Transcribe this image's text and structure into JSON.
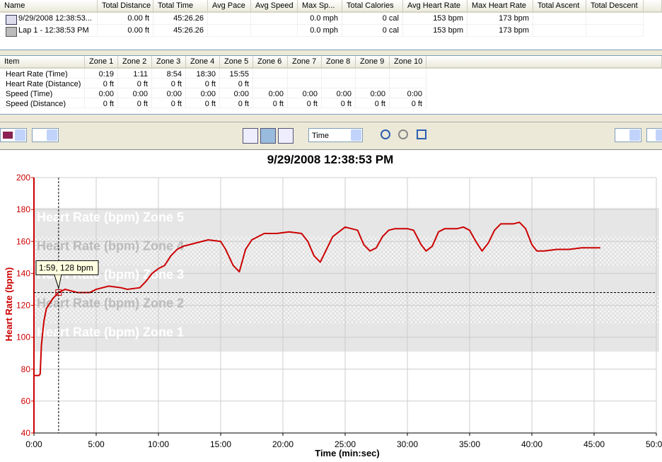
{
  "summary_table": {
    "headers": [
      "Name",
      "Total Distance",
      "Total Time",
      "Avg Pace",
      "Avg Speed",
      "Max Sp...",
      "Total Calories",
      "Avg Heart Rate",
      "Max Heart Rate",
      "Total Ascent",
      "Total Descent"
    ],
    "rows": [
      [
        "9/29/2008 12:38:53...",
        "0.00 ft",
        "45:26.26",
        null,
        null,
        "0.0 mph",
        "0 cal",
        "153 bpm",
        "173 bpm",
        null,
        null
      ],
      [
        "Lap 1 - 12:38:53 PM",
        "0.00 ft",
        "45:26.26",
        null,
        null,
        "0.0 mph",
        "0 cal",
        "153 bpm",
        "173 bpm",
        null,
        null
      ]
    ]
  },
  "zone_table": {
    "headers": [
      "Item",
      "Zone 1",
      "Zone 2",
      "Zone 3",
      "Zone 4",
      "Zone 5",
      "Zone 6",
      "Zone 7",
      "Zone 8",
      "Zone 9",
      "Zone 10"
    ],
    "rows": [
      [
        "Heart Rate (Time)",
        "0:19",
        "1:11",
        "8:54",
        "18:30",
        "15:55",
        null,
        null,
        null,
        null,
        null
      ],
      [
        "Heart Rate (Distance)",
        "0 ft",
        "0 ft",
        "0 ft",
        "0 ft",
        "0 ft",
        null,
        null,
        null,
        null,
        null
      ],
      [
        "Speed (Time)",
        "0:00",
        "0:00",
        "0:00",
        "0:00",
        "0:00",
        "0:00",
        "0:00",
        "0:00",
        "0:00",
        "0:00"
      ],
      [
        "Speed (Distance)",
        "0 ft",
        "0 ft",
        "0 ft",
        "0 ft",
        "0 ft",
        "0 ft",
        "0 ft",
        "0 ft",
        "0 ft",
        "0 ft"
      ]
    ]
  },
  "toolbar": {
    "x_axis_select": "Time"
  },
  "chart_data": {
    "type": "line",
    "title": "9/29/2008 12:38:53 PM",
    "x_label": "Time (min:sec)",
    "y_label": "Heart Rate (bpm)",
    "xlim": [
      0,
      50
    ],
    "ylim": [
      40,
      200
    ],
    "xticks": [
      {
        "value": 0,
        "label": "0:00"
      },
      {
        "value": 5,
        "label": "5:00"
      },
      {
        "value": 10,
        "label": "10:00"
      },
      {
        "value": 15,
        "label": "15:00"
      },
      {
        "value": 20,
        "label": "20:00"
      },
      {
        "value": 25,
        "label": "25:00"
      },
      {
        "value": 30,
        "label": "30:00"
      },
      {
        "value": 35,
        "label": "35:00"
      },
      {
        "value": 40,
        "label": "40:00"
      },
      {
        "value": 45,
        "label": "45:00"
      },
      {
        "value": 50,
        "label": "50:00"
      }
    ],
    "yticks": [
      40,
      60,
      80,
      100,
      120,
      140,
      160,
      180,
      200
    ],
    "grid": true,
    "zones": [
      {
        "label": "Heart Rate (bpm) Zone 1",
        "range": [
          91,
          109
        ]
      },
      {
        "label": "Heart Rate (bpm) Zone 2",
        "range": [
          109,
          127
        ]
      },
      {
        "label": "Heart Rate (bpm) Zone 3",
        "range": [
          127,
          145
        ]
      },
      {
        "label": "Heart Rate (bpm) Zone 4",
        "range": [
          145,
          163
        ]
      },
      {
        "label": "Heart Rate (bpm) Zone 5",
        "range": [
          163,
          181
        ]
      }
    ],
    "x": [
      0,
      0.4,
      0.5,
      0.6,
      0.8,
      1.0,
      1.5,
      1.98,
      2.5,
      3,
      3.5,
      4.5,
      5,
      6,
      7,
      7.5,
      8.5,
      9,
      9.5,
      10,
      10.5,
      11,
      11.5,
      12,
      13,
      14,
      15,
      15.4,
      16,
      16.5,
      17,
      17.5,
      18.5,
      19.5,
      20.5,
      21.5,
      22,
      22.5,
      23,
      23.5,
      24,
      25,
      26,
      26.5,
      27,
      27.5,
      28,
      28.5,
      29,
      30,
      30.5,
      31.1,
      31.5,
      32,
      32.5,
      33,
      34,
      34.5,
      35,
      35.5,
      36,
      36.5,
      37,
      37.5,
      38,
      38.5,
      39,
      39.5,
      40,
      40.4,
      41,
      42,
      43,
      44,
      45.5
    ],
    "series": [
      {
        "name": "Heart Rate",
        "color": "#cc0000",
        "values": [
          76,
          76,
          77,
          95,
          110,
          118,
          124,
          128,
          130,
          129,
          128,
          128,
          130,
          132,
          131,
          130,
          131,
          135,
          140,
          143,
          145,
          151,
          155,
          157,
          159,
          161,
          160,
          155,
          145,
          141,
          155,
          161,
          165,
          165,
          166,
          165,
          160,
          151,
          147,
          155,
          163,
          169,
          167,
          158,
          154,
          156,
          163,
          167,
          168,
          168,
          167,
          158,
          154,
          157,
          166,
          168,
          168,
          169,
          167,
          160,
          154,
          159,
          167,
          171,
          171,
          171,
          172,
          168,
          158,
          154,
          154,
          155,
          155,
          156,
          156
        ]
      }
    ],
    "tooltip": {
      "text": "1:59, 128 bpm",
      "x": 1.98,
      "y": 128
    }
  }
}
